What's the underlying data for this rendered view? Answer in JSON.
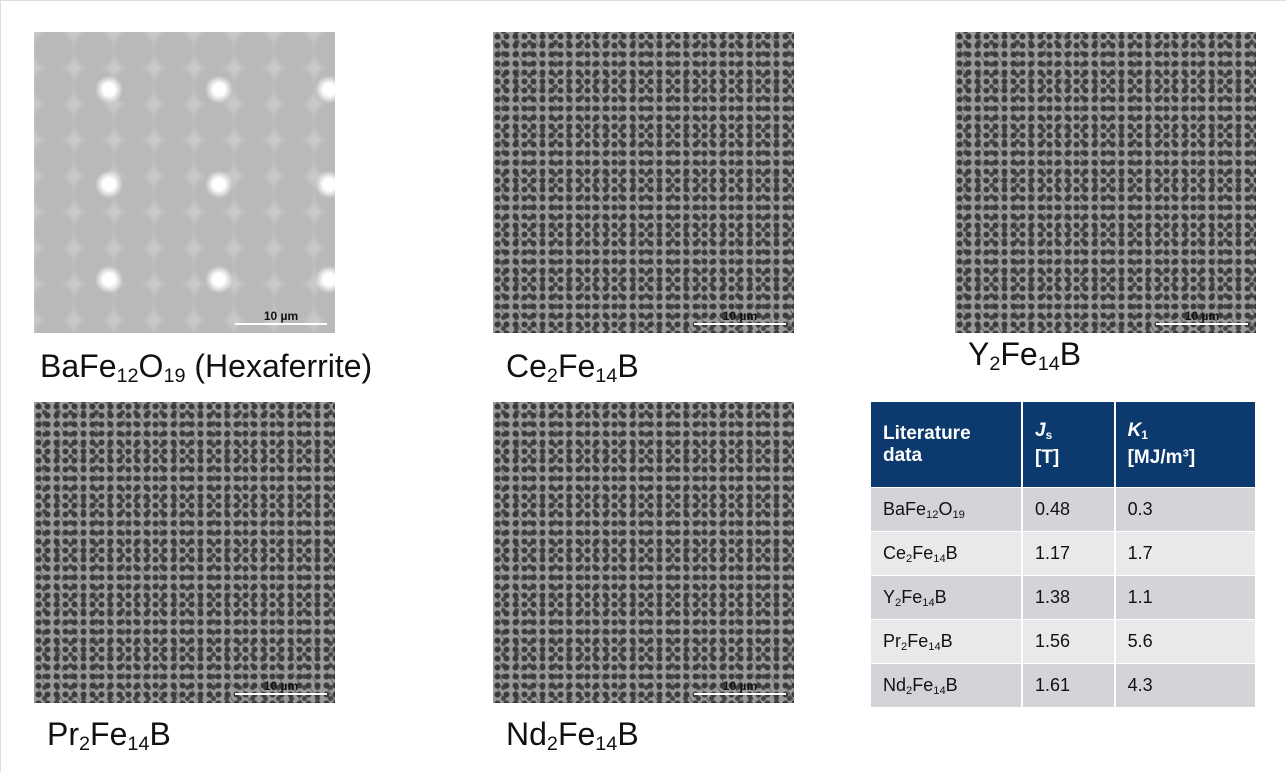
{
  "images": [
    {
      "scale_bar": "10 µm",
      "caption": [
        "BaFe",
        "12",
        "O",
        "19",
        " (Hexaferrite)"
      ]
    },
    {
      "scale_bar": "10 µm",
      "caption": [
        "Ce",
        "2",
        "Fe",
        "14",
        "B"
      ]
    },
    {
      "scale_bar": "10 µm",
      "caption": [
        "Y",
        "2",
        "Fe",
        "14",
        "B"
      ]
    },
    {
      "scale_bar": "10 µm",
      "caption": [
        "Pr",
        "2",
        "Fe",
        "14",
        "B"
      ]
    },
    {
      "scale_bar": "10 µm",
      "caption": [
        "Nd",
        "2",
        "Fe",
        "14",
        "B"
      ]
    }
  ],
  "table": {
    "header": [
      {
        "text": "Literature data"
      },
      {
        "symbol": "J",
        "sub": "s",
        "unit": "[T]"
      },
      {
        "symbol": "K",
        "sub": "1",
        "unit": "[MJ/m³]"
      }
    ],
    "rows": [
      [
        [
          "BaFe",
          "12",
          "O",
          "19"
        ],
        0.48,
        0.3
      ],
      [
        [
          "Ce",
          "2",
          "Fe",
          "14",
          "B"
        ],
        1.17,
        1.7
      ],
      [
        [
          "Y",
          "2",
          "Fe",
          "14",
          "B"
        ],
        1.38,
        1.1
      ],
      [
        [
          "Pr",
          "2",
          "Fe",
          "14",
          "B"
        ],
        1.56,
        5.6
      ],
      [
        [
          "Nd",
          "2",
          "Fe",
          "14",
          "B"
        ],
        1.61,
        4.3
      ]
    ]
  }
}
